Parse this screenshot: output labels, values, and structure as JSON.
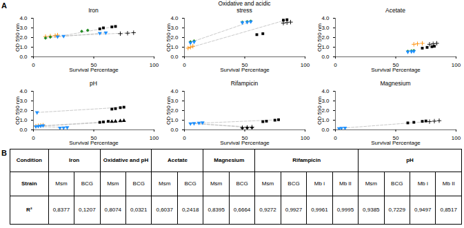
{
  "chart_data": [
    {
      "type": "scatter",
      "title": "Iron",
      "annotation": "A",
      "xlabel": "Survival Percentage",
      "ylabel": "OD 590 nm",
      "xlim": [
        0,
        100
      ],
      "ylim": [
        0,
        4
      ],
      "xticks": [
        0,
        50,
        100
      ],
      "yticks": [
        0,
        1,
        2,
        3,
        4
      ],
      "grid": false,
      "series": [
        {
          "type": "line",
          "color": "#BBBBBB",
          "line_style": "dashed",
          "x": [
            10,
            83
          ],
          "values": [
            2.1,
            2.5
          ]
        },
        {
          "type": "line",
          "color": "#BBBBBB",
          "line_style": "dashed",
          "x": [
            10,
            60
          ],
          "values": [
            1.95,
            2.5
          ]
        },
        {
          "type": "line",
          "color": "#BBBBBB",
          "line_style": "dashed",
          "x": [
            20,
            68
          ],
          "values": [
            2.1,
            3.15
          ]
        },
        {
          "type": "scatter",
          "color": "#FF8C00",
          "marker": "plus",
          "x": [
            10,
            14,
            18,
            20
          ],
          "values": [
            2.1,
            2.15,
            2.2,
            2.25
          ]
        },
        {
          "type": "scatter",
          "color": "#228B22",
          "marker": "diamond",
          "x": [
            10,
            14,
            40,
            45
          ],
          "values": [
            1.95,
            2.05,
            2.65,
            2.75
          ]
        },
        {
          "type": "scatter",
          "color": "#1E90FF",
          "marker": "triangle_down",
          "x": [
            20,
            25,
            55,
            60
          ],
          "values": [
            2.1,
            2.15,
            2.45,
            2.5
          ]
        },
        {
          "type": "scatter",
          "color": "#000000",
          "marker": "square",
          "x": [
            55,
            58,
            65,
            68
          ],
          "values": [
            2.9,
            3.0,
            3.1,
            3.15
          ]
        },
        {
          "type": "scatter",
          "color": "#000000",
          "marker": "plus",
          "x": [
            72,
            78,
            83
          ],
          "values": [
            2.4,
            2.45,
            2.5
          ]
        }
      ]
    },
    {
      "type": "scatter",
      "title": "Oxidative and acidic\nstress",
      "xlabel": "Survival Percentage",
      "ylabel": "OD 590 nm",
      "xlim": [
        0,
        100
      ],
      "ylim": [
        0,
        4
      ],
      "xticks": [
        0,
        50,
        100
      ],
      "yticks": [
        0,
        1,
        2,
        3,
        4
      ],
      "grid": false,
      "series": [
        {
          "type": "line",
          "color": "#BBBBBB",
          "line_style": "dashed",
          "x": [
            3,
            85
          ],
          "values": [
            0.9,
            3.85
          ]
        },
        {
          "type": "line",
          "color": "#BBBBBB",
          "line_style": "dashed",
          "x": [
            5,
            55
          ],
          "values": [
            1.5,
            3.65
          ]
        },
        {
          "type": "scatter",
          "color": "#FF8C00",
          "marker": "plus",
          "x": [
            3,
            5,
            7
          ],
          "values": [
            0.9,
            1.0,
            1.1
          ]
        },
        {
          "type": "scatter",
          "color": "#228B22",
          "marker": "diamond",
          "x": [
            5,
            8,
            48,
            52,
            55
          ],
          "values": [
            1.55,
            1.65,
            3.6,
            3.65,
            3.7
          ]
        },
        {
          "type": "scatter",
          "color": "#1E90FF",
          "marker": "triangle_down",
          "x": [
            5,
            8,
            48,
            52,
            55
          ],
          "values": [
            1.45,
            1.55,
            3.55,
            3.6,
            3.65
          ]
        },
        {
          "type": "scatter",
          "color": "#000000",
          "marker": "square",
          "x": [
            60,
            65,
            82,
            85
          ],
          "values": [
            2.3,
            2.4,
            3.8,
            3.85
          ]
        },
        {
          "type": "scatter",
          "color": "#000000",
          "marker": "plus",
          "x": [
            82,
            85,
            88
          ],
          "values": [
            3.5,
            3.55,
            3.6
          ]
        }
      ]
    },
    {
      "type": "scatter",
      "title": "Acetate",
      "xlabel": "Survival Percentage",
      "ylabel": "OD 590 nm",
      "xlim": [
        0,
        100
      ],
      "ylim": [
        0,
        4
      ],
      "xticks": [
        0,
        50,
        100
      ],
      "yticks": [
        0,
        1,
        2,
        3,
        4
      ],
      "grid": false,
      "series": [
        {
          "type": "scatter",
          "color": "#FF8C00",
          "marker": "plus",
          "x": [
            65,
            68,
            72
          ],
          "values": [
            1.3,
            1.35,
            1.4
          ]
        },
        {
          "type": "scatter",
          "color": "#228B22",
          "marker": "diamond",
          "x": [
            60,
            63,
            65
          ],
          "values": [
            0.58,
            0.62,
            0.65
          ]
        },
        {
          "type": "scatter",
          "color": "#1E90FF",
          "marker": "triangle_down",
          "x": [
            60,
            63,
            65
          ],
          "values": [
            0.52,
            0.55,
            0.58
          ]
        },
        {
          "type": "scatter",
          "color": "#000000",
          "marker": "square",
          "x": [
            72,
            76,
            80,
            82
          ],
          "values": [
            0.9,
            0.98,
            1.05,
            1.1
          ]
        },
        {
          "type": "scatter",
          "color": "#000000",
          "marker": "plus",
          "x": [
            78,
            81,
            84
          ],
          "values": [
            1.3,
            1.35,
            1.4
          ]
        }
      ]
    },
    {
      "type": "scatter",
      "title": "pH",
      "xlabel": "Survival Percentage",
      "ylabel": "OD 590 nm",
      "xlim": [
        0,
        100
      ],
      "ylim": [
        0,
        4
      ],
      "xticks": [
        0,
        50,
        100
      ],
      "yticks": [
        0,
        1,
        2,
        3,
        4
      ],
      "grid": false,
      "series": [
        {
          "type": "line",
          "color": "#BBBBBB",
          "line_style": "dashed",
          "x": [
            3,
            75
          ],
          "values": [
            1.8,
            2.35
          ]
        },
        {
          "type": "line",
          "color": "#BBBBBB",
          "line_style": "dashed",
          "x": [
            2,
            75
          ],
          "values": [
            0.38,
            0.95
          ]
        },
        {
          "type": "line",
          "color": "#BBBBBB",
          "line_style": "dashed",
          "x": [
            2,
            75
          ],
          "values": [
            0.35,
            0.88
          ]
        },
        {
          "type": "line",
          "color": "#BBBBBB",
          "line_style": "dashed",
          "x": [
            2,
            28
          ],
          "values": [
            0.35,
            0.25
          ]
        },
        {
          "type": "scatter",
          "color": "#FF8C00",
          "marker": "plus",
          "x": [
            2,
            4,
            6,
            8
          ],
          "values": [
            0.38,
            0.42,
            0.45,
            0.48
          ]
        },
        {
          "type": "scatter",
          "color": "#1E90FF",
          "marker": "triangle_down",
          "x": [
            2,
            4,
            6,
            8,
            22,
            25,
            28
          ],
          "values": [
            0.35,
            0.38,
            0.42,
            0.45,
            0.2,
            0.22,
            0.25
          ]
        },
        {
          "type": "scatter",
          "color": "#1E90FF",
          "marker": "triangle_down",
          "x": [
            3
          ],
          "values": [
            1.8
          ]
        },
        {
          "type": "scatter",
          "color": "#000000",
          "marker": "square",
          "x": [
            65,
            68,
            72,
            75
          ],
          "values": [
            2.15,
            2.2,
            2.3,
            2.35
          ]
        },
        {
          "type": "scatter",
          "color": "#000000",
          "marker": "triangle_up",
          "x": [
            65,
            68,
            72,
            75
          ],
          "values": [
            0.85,
            0.88,
            0.92,
            0.95
          ]
        },
        {
          "type": "scatter",
          "color": "#000000",
          "marker": "square",
          "x": [
            55,
            58,
            62
          ],
          "values": [
            0.78,
            0.82,
            0.88
          ]
        }
      ]
    },
    {
      "type": "scatter",
      "title": "Rifampicin",
      "xlabel": "Survival Percentage",
      "ylabel": "OD 590 nm",
      "xlim": [
        0,
        100
      ],
      "ylim": [
        0,
        4
      ],
      "xticks": [
        0,
        50,
        100
      ],
      "yticks": [
        0,
        1,
        2,
        3,
        4
      ],
      "grid": false,
      "series": [
        {
          "type": "line",
          "color": "#BBBBBB",
          "line_style": "dashed",
          "x": [
            5,
            78
          ],
          "values": [
            0.65,
            1.05
          ]
        },
        {
          "type": "line",
          "color": "#BBBBBB",
          "line_style": "dashed",
          "x": [
            5,
            56
          ],
          "values": [
            0.68,
            0.28
          ]
        },
        {
          "type": "line",
          "color": "#BBBBBB",
          "line_style": "dashed",
          "x": [
            5,
            56
          ],
          "values": [
            0.68,
            0.22
          ]
        },
        {
          "type": "scatter",
          "color": "#1E90FF",
          "marker": "triangle_down",
          "x": [
            5,
            8,
            12,
            15
          ],
          "values": [
            0.65,
            0.68,
            0.72,
            0.75
          ]
        },
        {
          "type": "scatter",
          "color": "#000000",
          "marker": "square",
          "x": [
            65,
            68,
            75,
            78
          ],
          "values": [
            0.85,
            0.9,
            1.0,
            1.05
          ]
        },
        {
          "type": "scatter",
          "color": "#000000",
          "marker": "plus",
          "x": [
            48,
            52,
            56
          ],
          "values": [
            0.22,
            0.25,
            0.28
          ]
        },
        {
          "type": "scatter",
          "color": "#000000",
          "marker": "diamond",
          "x": [
            48,
            52,
            56
          ],
          "values": [
            0.18,
            0.2,
            0.22
          ]
        }
      ]
    },
    {
      "type": "scatter",
      "title": "Magnesium",
      "xlabel": "Survival Percentage",
      "ylabel": "OD 590 nm",
      "xlim": [
        0,
        100
      ],
      "ylim": [
        0,
        4
      ],
      "xticks": [
        0,
        50,
        100
      ],
      "yticks": [
        0,
        1,
        2,
        3,
        4
      ],
      "grid": false,
      "series": [
        {
          "type": "line",
          "color": "#BBBBBB",
          "line_style": "dashed",
          "x": [
            3,
            86
          ],
          "values": [
            0.15,
            0.95
          ]
        },
        {
          "type": "scatter",
          "color": "#1E90FF",
          "marker": "triangle_down",
          "x": [
            3,
            5,
            8
          ],
          "values": [
            0.15,
            0.18,
            0.2
          ]
        },
        {
          "type": "scatter",
          "color": "#000000",
          "marker": "square",
          "x": [
            60,
            65,
            72,
            75
          ],
          "values": [
            0.72,
            0.78,
            0.88,
            0.92
          ]
        },
        {
          "type": "scatter",
          "color": "#000000",
          "marker": "plus",
          "x": [
            78,
            82,
            86
          ],
          "values": [
            0.85,
            0.9,
            0.95
          ]
        }
      ]
    },
    {
      "type": "table",
      "annotation": "B",
      "row_labels": [
        "Condition",
        "Strain",
        "R²"
      ],
      "sections": [
        {
          "name": "Iron",
          "strains": [
            "Msm",
            "BCG"
          ],
          "r2": [
            "0,8377",
            "0,1207"
          ]
        },
        {
          "name": "Oxidative and pH",
          "strains": [
            "Msm",
            "BCG"
          ],
          "r2": [
            "0,8074",
            "0,0321"
          ]
        },
        {
          "name": "Acetate",
          "strains": [
            "Msm",
            "BCG"
          ],
          "r2": [
            "0,6037",
            "0,2418"
          ]
        },
        {
          "name": "Magnesium",
          "strains": [
            "Msm",
            "BCG"
          ],
          "r2": [
            "0,8395",
            "0,6664"
          ]
        },
        {
          "name": "Rifampicin",
          "strains": [
            "Msm",
            "BCG",
            "Mb i",
            "Mb II"
          ],
          "r2": [
            "0,9272",
            "0,9927",
            "0,9961",
            "0,9995"
          ]
        },
        {
          "name": "pH",
          "strains": [
            "Msm",
            "BCG",
            "Mb i",
            "Mb II"
          ],
          "r2": [
            "0,9385",
            "0,7229",
            "0,9497",
            "0,8517"
          ]
        }
      ]
    }
  ]
}
